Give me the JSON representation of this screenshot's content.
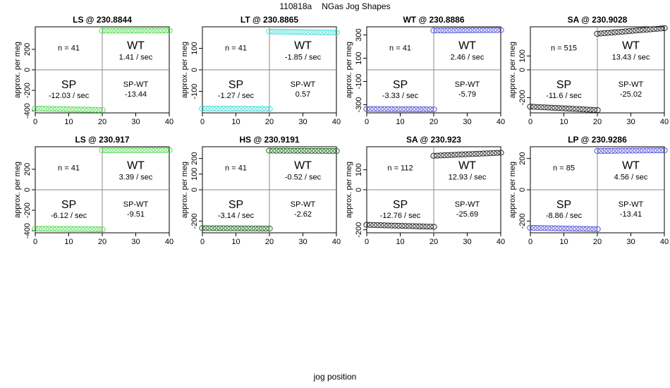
{
  "header": {
    "run_id": "110818a",
    "title": "NGas Jog Shapes"
  },
  "xlabel": "jog position",
  "chart_data": [
    {
      "type": "scatter",
      "title": "LS @ 230.8844",
      "xlabel": "",
      "ylabel": "approx. per meg",
      "xlim": [
        0,
        40
      ],
      "xticks": [
        0,
        10,
        20,
        30,
        40
      ],
      "ylim": [
        -420,
        420
      ],
      "yticks": [
        -400,
        -200,
        0,
        200
      ],
      "color": "#55dd55",
      "n_label": "n = 41",
      "wt_label": "WT",
      "wt_rate": "1.41 / sec",
      "sp_label": "SP",
      "sp_rate": "-12.03 / sec",
      "diff_label": "SP-WT",
      "diff_value": "-13.44",
      "series": [
        {
          "x_start": 0,
          "x_end": 20,
          "y_start": -378,
          "y_end": -392
        },
        {
          "x_start": 20,
          "x_end": 40,
          "y_start": 382,
          "y_end": 383
        }
      ]
    },
    {
      "type": "scatter",
      "title": "LT @ 230.8865",
      "xlabel": "",
      "ylabel": "approx. per meg",
      "xlim": [
        0,
        40
      ],
      "xticks": [
        0,
        10,
        20,
        30,
        40
      ],
      "ylim": [
        -200,
        200
      ],
      "yticks": [
        -100,
        0,
        100
      ],
      "color": "#44dddd",
      "n_label": "n = 41",
      "wt_label": "WT",
      "wt_rate": "-1.85 / sec",
      "sp_label": "SP",
      "sp_rate": "-1.27 / sec",
      "diff_label": "SP-WT",
      "diff_value": "0.57",
      "series": [
        {
          "x_start": 0,
          "x_end": 20,
          "y_start": -180,
          "y_end": -182
        },
        {
          "x_start": 20,
          "x_end": 40,
          "y_start": 178,
          "y_end": 173
        }
      ]
    },
    {
      "type": "scatter",
      "title": "WT @ 230.8886",
      "xlabel": "",
      "ylabel": "approx. per meg",
      "xlim": [
        0,
        40
      ],
      "xticks": [
        0,
        10,
        20,
        30,
        40
      ],
      "ylim": [
        -370,
        370
      ],
      "yticks": [
        -300,
        -100,
        100,
        300
      ],
      "color": "#5555dd",
      "n_label": "n = 41",
      "wt_label": "WT",
      "wt_rate": "2.46 / sec",
      "sp_label": "SP",
      "sp_rate": "-3.33 / sec",
      "diff_label": "SP-WT",
      "diff_value": "-5.79",
      "series": [
        {
          "x_start": 0,
          "x_end": 20,
          "y_start": -337,
          "y_end": -340
        },
        {
          "x_start": 20,
          "x_end": 40,
          "y_start": 338,
          "y_end": 342
        }
      ]
    },
    {
      "type": "scatter",
      "title": "SA @ 230.9028",
      "xlabel": "",
      "ylabel": "approx. per meg",
      "xlim": [
        0,
        40
      ],
      "xticks": [
        0,
        10,
        20,
        30,
        40
      ],
      "ylim": [
        -310,
        310
      ],
      "yticks": [
        -200,
        0,
        100
      ],
      "color": "#222222",
      "n_label": "n = 515",
      "wt_label": "WT",
      "wt_rate": "13.43 / sec",
      "sp_label": "SP",
      "sp_rate": "-11.6 / sec",
      "diff_label": "SP-WT",
      "diff_value": "-25.02",
      "series": [
        {
          "x_start": 0,
          "x_end": 20,
          "y_start": -265,
          "y_end": -290
        },
        {
          "x_start": 20,
          "x_end": 40,
          "y_start": 260,
          "y_end": 300
        }
      ]
    },
    {
      "type": "scatter",
      "title": "LS @ 230.917",
      "xlabel": "",
      "ylabel": "approx. per meg",
      "xlim": [
        0,
        40
      ],
      "xticks": [
        0,
        10,
        20,
        30,
        40
      ],
      "ylim": [
        -420,
        420
      ],
      "yticks": [
        -400,
        -200,
        0,
        200
      ],
      "color": "#55dd55",
      "n_label": "n = 41",
      "wt_label": "WT",
      "wt_rate": "3.39 / sec",
      "sp_label": "SP",
      "sp_rate": "-6.12 / sec",
      "diff_label": "SP-WT",
      "diff_value": "-9.51",
      "series": [
        {
          "x_start": 0,
          "x_end": 20,
          "y_start": -380,
          "y_end": -386
        },
        {
          "x_start": 20,
          "x_end": 40,
          "y_start": 385,
          "y_end": 387
        }
      ]
    },
    {
      "type": "scatter",
      "title": "HS @ 230.9191",
      "xlabel": "",
      "ylabel": "approx. per meg",
      "xlim": [
        0,
        40
      ],
      "xticks": [
        0,
        10,
        20,
        30,
        40
      ],
      "ylim": [
        -275,
        275
      ],
      "yticks": [
        -200,
        0,
        100,
        200
      ],
      "color": "#226622",
      "n_label": "n = 41",
      "wt_label": "WT",
      "wt_rate": "-0.52 / sec",
      "sp_label": "SP",
      "sp_rate": "-3.14 / sec",
      "diff_label": "SP-WT",
      "diff_value": "-2.62",
      "series": [
        {
          "x_start": 0,
          "x_end": 20,
          "y_start": -245,
          "y_end": -248
        },
        {
          "x_start": 20,
          "x_end": 40,
          "y_start": 250,
          "y_end": 248
        }
      ]
    },
    {
      "type": "scatter",
      "title": "SA @ 230.923",
      "xlabel": "",
      "ylabel": "approx. per meg",
      "xlim": [
        0,
        40
      ],
      "xticks": [
        0,
        10,
        20,
        30,
        40
      ],
      "ylim": [
        -215,
        215
      ],
      "yticks": [
        -200,
        0,
        100
      ],
      "color": "#222222",
      "n_label": "n = 112",
      "wt_label": "WT",
      "wt_rate": "12.93 / sec",
      "sp_label": "SP",
      "sp_rate": "-12.76 / sec",
      "diff_label": "SP-WT",
      "diff_value": "-25.69",
      "series": [
        {
          "x_start": 0,
          "x_end": 20,
          "y_start": -175,
          "y_end": -185
        },
        {
          "x_start": 20,
          "x_end": 40,
          "y_start": 170,
          "y_end": 185
        }
      ]
    },
    {
      "type": "scatter",
      "title": "LP @ 230.9286",
      "xlabel": "",
      "ylabel": "approx. per meg",
      "xlim": [
        0,
        40
      ],
      "xticks": [
        0,
        10,
        20,
        30,
        40
      ],
      "ylim": [
        -275,
        275
      ],
      "yticks": [
        -200,
        0,
        200
      ],
      "color": "#5555dd",
      "n_label": "n = 85",
      "wt_label": "WT",
      "wt_rate": "4.56 / sec",
      "sp_label": "SP",
      "sp_rate": "-8.86 / sec",
      "diff_label": "SP-WT",
      "diff_value": "-13.41",
      "series": [
        {
          "x_start": 0,
          "x_end": 20,
          "y_start": -243,
          "y_end": -252
        },
        {
          "x_start": 20,
          "x_end": 40,
          "y_start": 248,
          "y_end": 252
        }
      ]
    }
  ]
}
